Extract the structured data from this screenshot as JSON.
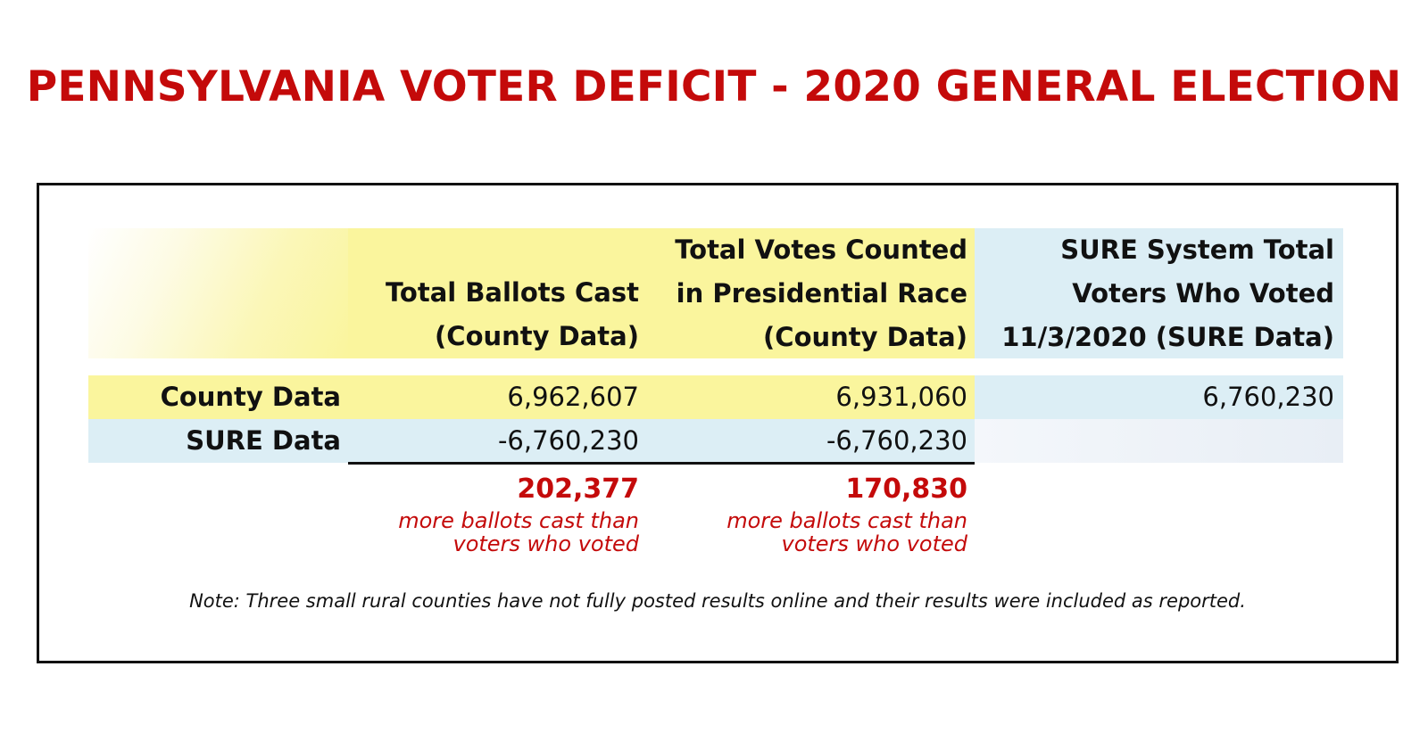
{
  "title": "PENNSYLVANIA VOTER DEFICIT - 2020 GENERAL ELECTION",
  "colors": {
    "title_red": "#c40a0a",
    "yellow_fill": "#faf59d",
    "blue_fill": "#dceef5"
  },
  "table": {
    "headers": [
      {
        "lines": [
          "Total Ballots Cast",
          "(County Data)"
        ]
      },
      {
        "lines": [
          "Total Votes Counted",
          "in Presidential Race",
          "(County Data)"
        ]
      },
      {
        "lines": [
          "SURE System Total",
          "Voters Who Voted",
          "11/3/2020 (SURE Data)"
        ]
      }
    ],
    "rows": [
      {
        "label": "County Data",
        "values": [
          "6,962,607",
          "6,931,060",
          "6,760,230"
        ]
      },
      {
        "label": "SURE Data",
        "values": [
          "-6,760,230",
          "-6,760,230"
        ]
      }
    ],
    "deficits": [
      {
        "value": "202,377",
        "note_lines": [
          "more ballots cast than",
          "voters who voted"
        ]
      },
      {
        "value": "170,830",
        "note_lines": [
          "more ballots cast than",
          "voters who voted"
        ]
      }
    ]
  },
  "footnote": "Note: Three small rural counties have not fully posted results online and their results were included as reported."
}
